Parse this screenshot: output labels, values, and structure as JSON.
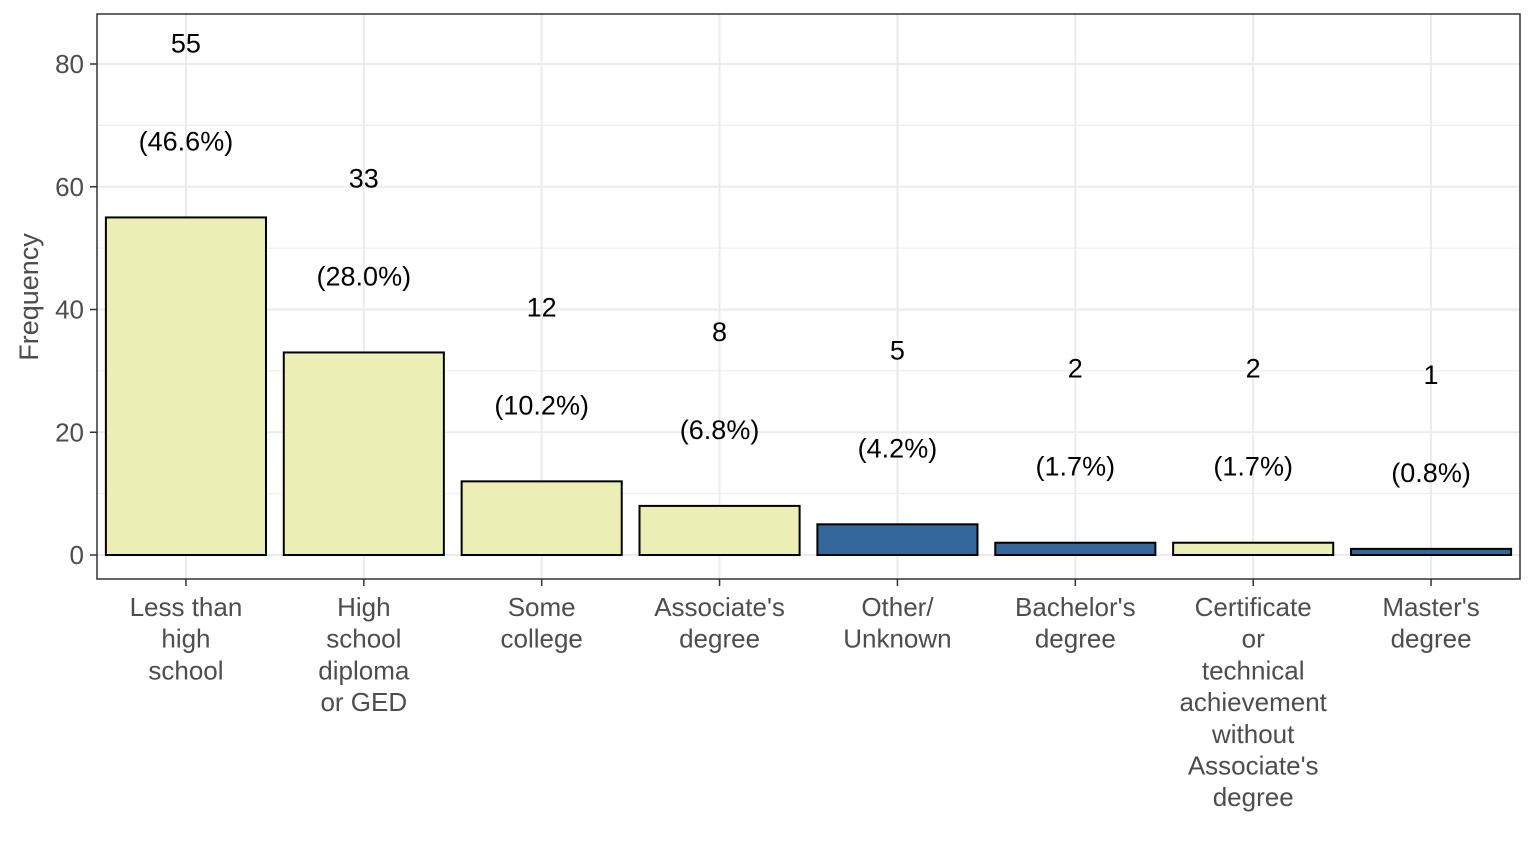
{
  "chart_data": {
    "type": "bar",
    "ylabel": "Frequency",
    "xlabel": "",
    "ylim": [
      0,
      87
    ],
    "yticks": [
      "0",
      "20",
      "40",
      "60",
      "80"
    ],
    "ytick_values": [
      0,
      20,
      40,
      60,
      80
    ],
    "grid": true,
    "categories": [
      [
        "Less than",
        "high",
        "school"
      ],
      [
        "High",
        "school",
        "diploma",
        "or GED"
      ],
      [
        "Some",
        "college"
      ],
      [
        "Associate's",
        "degree"
      ],
      [
        "Other/",
        "Unknown"
      ],
      [
        "Bachelor's",
        "degree"
      ],
      [
        "Certificate",
        "or",
        "technical",
        "achievement",
        "without",
        "Associate's",
        "degree"
      ],
      [
        "Master's",
        "degree"
      ]
    ],
    "values": [
      55,
      33,
      12,
      8,
      5,
      2,
      2,
      1
    ],
    "count_labels": [
      "55",
      "33",
      "12",
      "8",
      "5",
      "2",
      "2",
      "1"
    ],
    "percent_labels": [
      "(46.6%)",
      "(28.0%)",
      "(10.2%)",
      "(6.8%)",
      "(4.2%)",
      "(1.7%)",
      "(1.7%)",
      "(0.8%)"
    ],
    "bar_colors": [
      "#ebefb5",
      "#ebefb5",
      "#ebefb5",
      "#ebefb5",
      "#336699",
      "#336699",
      "#ebefb5",
      "#336699"
    ],
    "colors": {
      "light_fill": "#ebefb5",
      "dark_fill": "#336699",
      "bar_outline": "#000000",
      "grid": "#ebebeb",
      "panel_border": "#333333"
    }
  }
}
